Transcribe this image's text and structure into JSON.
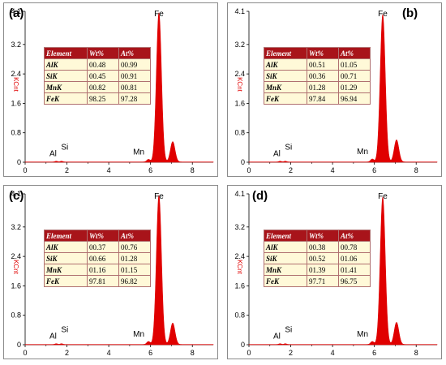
{
  "chart_data": [
    {
      "type": "area",
      "panel_label": "(a)",
      "ylabel": "KCnt",
      "xlim": [
        0,
        9
      ],
      "ylim": [
        0,
        4.1
      ],
      "y_ticks": [
        "0",
        "0.8",
        "1.6",
        "2.4",
        "3.2",
        "4.1"
      ],
      "x_ticks": [
        "0",
        "2",
        "4",
        "6",
        "8"
      ],
      "color": "#e00000",
      "peaks": [
        {
          "label": "Al",
          "energy": 1.49,
          "intensity": 0.02
        },
        {
          "label": "Si",
          "energy": 1.74,
          "intensity": 0.02
        },
        {
          "label": "Mn",
          "energy": 5.9,
          "intensity": 0.07
        },
        {
          "label": "Fe",
          "energy": 6.4,
          "intensity": 4.05
        },
        {
          "label": "",
          "energy": 7.06,
          "intensity": 0.55
        }
      ],
      "table": {
        "headers": [
          "Element",
          "Wt%",
          "At%"
        ],
        "rows": [
          [
            "AlK",
            "00.48",
            "00.99"
          ],
          [
            "SiK",
            "00.45",
            "00.91"
          ],
          [
            "MnK",
            "00.82",
            "00.81"
          ],
          [
            "FeK",
            "98.25",
            "97.28"
          ]
        ]
      }
    },
    {
      "type": "area",
      "panel_label": "(b)",
      "ylabel": "KCnt",
      "xlim": [
        0,
        9
      ],
      "ylim": [
        0,
        4.1
      ],
      "y_ticks": [
        "0",
        "0.8",
        "1.6",
        "2.4",
        "3.2",
        "4.1"
      ],
      "x_ticks": [
        "0",
        "2",
        "4",
        "6",
        "8"
      ],
      "color": "#e00000",
      "peaks": [
        {
          "label": "Al",
          "energy": 1.49,
          "intensity": 0.02
        },
        {
          "label": "Si",
          "energy": 1.74,
          "intensity": 0.02
        },
        {
          "label": "Mn",
          "energy": 5.9,
          "intensity": 0.08
        },
        {
          "label": "Fe",
          "energy": 6.4,
          "intensity": 4.0
        },
        {
          "label": "",
          "energy": 7.06,
          "intensity": 0.6
        }
      ],
      "table": {
        "headers": [
          "Element",
          "Wt%",
          "At%"
        ],
        "rows": [
          [
            "AlK",
            "00.51",
            "01.05"
          ],
          [
            "SiK",
            "00.36",
            "00.71"
          ],
          [
            "MnK",
            "01.28",
            "01.29"
          ],
          [
            "FeK",
            "97.84",
            "96.94"
          ]
        ]
      }
    },
    {
      "type": "area",
      "panel_label": "(c)",
      "ylabel": "KCnt",
      "xlim": [
        0,
        9
      ],
      "ylim": [
        0,
        4.1
      ],
      "y_ticks": [
        "0",
        "0.8",
        "1.6",
        "2.4",
        "3.2",
        "4.1"
      ],
      "x_ticks": [
        "0",
        "2",
        "4",
        "6",
        "8"
      ],
      "color": "#e00000",
      "peaks": [
        {
          "label": "Al",
          "energy": 1.49,
          "intensity": 0.02
        },
        {
          "label": "Si",
          "energy": 1.74,
          "intensity": 0.02
        },
        {
          "label": "Mn",
          "energy": 5.9,
          "intensity": 0.08
        },
        {
          "label": "Fe",
          "energy": 6.4,
          "intensity": 4.05
        },
        {
          "label": "",
          "energy": 7.06,
          "intensity": 0.58
        }
      ],
      "table": {
        "headers": [
          "Element",
          "Wt%",
          "At%"
        ],
        "rows": [
          [
            "AlK",
            "00.37",
            "00.76"
          ],
          [
            "SiK",
            "00.66",
            "01.28"
          ],
          [
            "MnK",
            "01.16",
            "01.15"
          ],
          [
            "FeK",
            "97.81",
            "96.82"
          ]
        ]
      }
    },
    {
      "type": "area",
      "panel_label": "(d)",
      "ylabel": "KCnt",
      "xlim": [
        0,
        9
      ],
      "ylim": [
        0,
        4.1
      ],
      "y_ticks": [
        "0",
        "0.8",
        "1.6",
        "2.4",
        "3.2",
        "4.1"
      ],
      "x_ticks": [
        "0",
        "2",
        "4",
        "6",
        "8"
      ],
      "color": "#e00000",
      "peaks": [
        {
          "label": "Al",
          "energy": 1.49,
          "intensity": 0.02
        },
        {
          "label": "Si",
          "energy": 1.74,
          "intensity": 0.02
        },
        {
          "label": "Mn",
          "energy": 5.9,
          "intensity": 0.08
        },
        {
          "label": "Fe",
          "energy": 6.4,
          "intensity": 4.0
        },
        {
          "label": "",
          "energy": 7.06,
          "intensity": 0.6
        }
      ],
      "table": {
        "headers": [
          "Element",
          "Wt%",
          "At%"
        ],
        "rows": [
          [
            "AlK",
            "00.38",
            "00.78"
          ],
          [
            "SiK",
            "00.52",
            "01.06"
          ],
          [
            "MnK",
            "01.39",
            "01.41"
          ],
          [
            "FeK",
            "97.71",
            "96.75"
          ]
        ]
      }
    }
  ]
}
